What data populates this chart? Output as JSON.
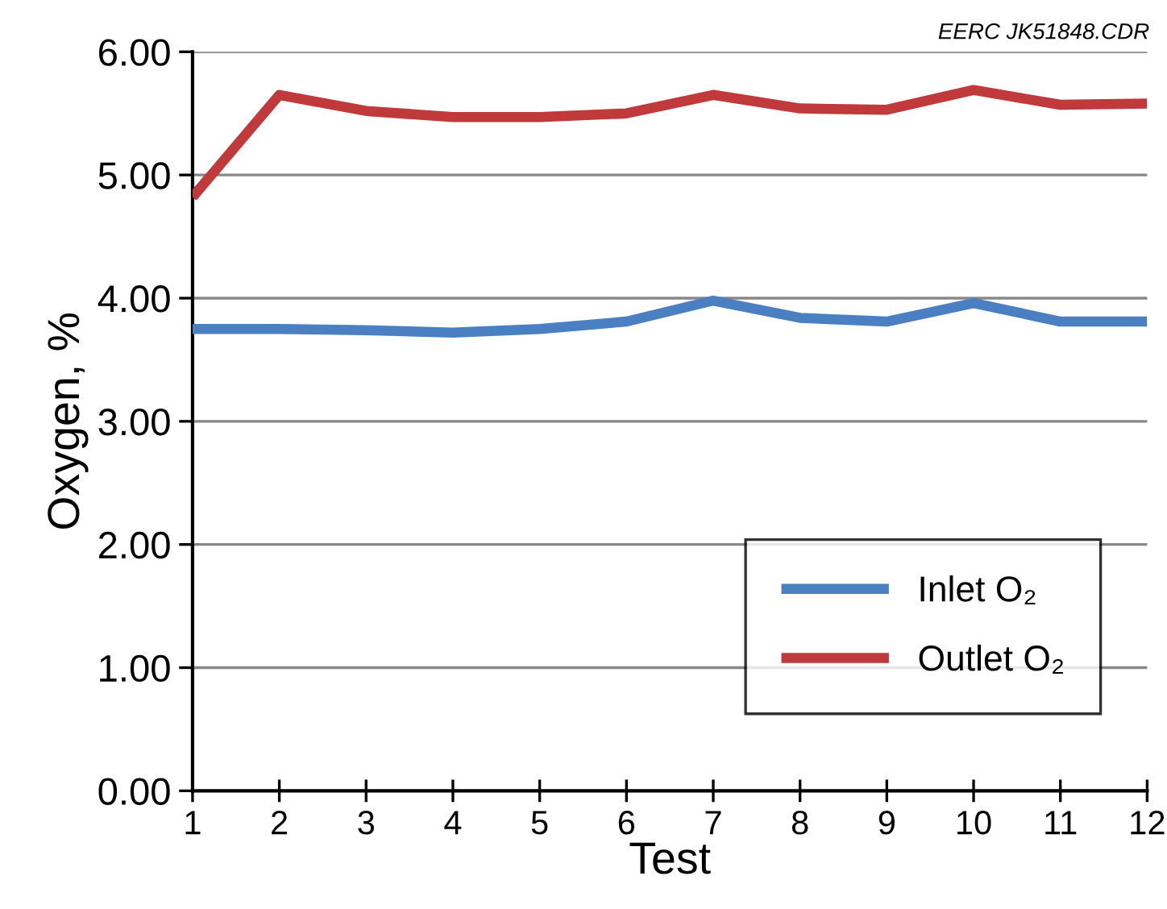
{
  "chart_data": {
    "type": "line",
    "xlabel": "Test",
    "ylabel": "Oxygen, %",
    "x": [
      1,
      2,
      3,
      4,
      5,
      6,
      7,
      8,
      9,
      10,
      11,
      12
    ],
    "series": [
      {
        "name": "Inlet O₂",
        "color": "#4a7fc1",
        "values": [
          3.75,
          3.75,
          3.74,
          3.72,
          3.75,
          3.81,
          3.98,
          3.84,
          3.81,
          3.96,
          3.81,
          3.81
        ]
      },
      {
        "name": "Outlet O₂",
        "color": "#c0393b",
        "values": [
          4.82,
          5.65,
          5.52,
          5.47,
          5.47,
          5.5,
          5.65,
          5.54,
          5.53,
          5.69,
          5.57,
          5.58
        ]
      }
    ],
    "xlim": [
      1,
      12
    ],
    "xticks": [
      1,
      2,
      3,
      4,
      5,
      6,
      7,
      8,
      9,
      10,
      11,
      12
    ],
    "ylim": [
      0,
      6
    ],
    "yticks": [
      {
        "value": 0,
        "label": "0.00"
      },
      {
        "value": 1,
        "label": "1.00"
      },
      {
        "value": 2,
        "label": "2.00"
      },
      {
        "value": 3,
        "label": "3.00"
      },
      {
        "value": 4,
        "label": "4.00"
      },
      {
        "value": 5,
        "label": "5.00"
      },
      {
        "value": 6,
        "label": "6.00"
      }
    ],
    "grid": "y",
    "legend": "bottom right",
    "marker": "none",
    "line_style": "solid",
    "annotations": [
      "EERC JK51848.CDR"
    ]
  }
}
